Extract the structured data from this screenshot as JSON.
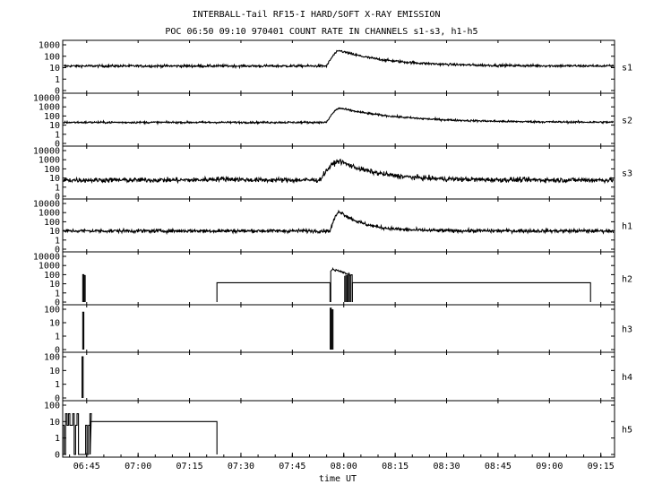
{
  "chart_data": {
    "type": "line",
    "title": "INTERBALL-Tail RF15-I HARD/SOFT X-RAY EMISSION",
    "subtitle": "POC 06:50 09:10 970401  COUNT RATE IN CHANNELS s1-s3, h1-h5",
    "xlabel": "time UT",
    "x_ticks": [
      "06:45",
      "07:00",
      "07:15",
      "07:30",
      "07:45",
      "08:00",
      "08:15",
      "08:30",
      "08:45",
      "09:00",
      "09:15"
    ],
    "x_range_minutes": [
      398.0,
      559.0
    ],
    "yscale": "log",
    "panels": [
      {
        "name": "s1",
        "y_ticks": [
          "1000",
          "100",
          "10",
          "1",
          "0"
        ],
        "baseline": 14,
        "noise": 0.1,
        "events": [
          {
            "kind": "flare",
            "start": "07:55",
            "peak": "07:59",
            "peak_value": 300,
            "decay_min": 14
          }
        ]
      },
      {
        "name": "s2",
        "y_ticks": [
          "10000",
          "1000",
          "100",
          "10",
          "1",
          "0"
        ],
        "baseline": 20,
        "noise": 0.1,
        "events": [
          {
            "kind": "flare",
            "start": "07:55",
            "peak": "07:59",
            "peak_value": 700,
            "decay_min": 18
          }
        ]
      },
      {
        "name": "s3",
        "y_ticks": [
          "10000",
          "1000",
          "100",
          "10",
          "1",
          "0"
        ],
        "baseline": 6,
        "noise": 0.25,
        "events": [
          {
            "kind": "flare",
            "start": "07:53",
            "peak": "07:59",
            "peak_value": 700,
            "decay_min": 11
          },
          {
            "kind": "bump",
            "center": "07:25",
            "value": 8
          },
          {
            "kind": "bump",
            "center": "08:20",
            "value": 10
          }
        ]
      },
      {
        "name": "h1",
        "y_ticks": [
          "10000",
          "1000",
          "100",
          "10",
          "1",
          "0"
        ],
        "baseline": 10,
        "noise": 0.18,
        "events": [
          {
            "kind": "flare",
            "start": "07:56",
            "peak": "07:59",
            "peak_value": 1300,
            "decay_min": 7
          }
        ]
      },
      {
        "name": "h2",
        "y_ticks": [
          "10000",
          "1000",
          "100",
          "10",
          "1",
          "0"
        ],
        "segments": [
          {
            "kind": "spike",
            "time": "06:44",
            "value": 100
          },
          {
            "kind": "spike",
            "time": "06:44.4",
            "value": 80
          },
          {
            "kind": "step",
            "from": "07:23",
            "to": "07:56",
            "value": 13
          },
          {
            "kind": "flare",
            "start": "07:56.2",
            "peak": "07:56.8",
            "peak_value": 400,
            "end": "08:02.5",
            "end_value": 80
          },
          {
            "kind": "step",
            "from": "08:02.5",
            "to": "09:12",
            "value": 13
          }
        ]
      },
      {
        "name": "h3",
        "y_ticks": [
          "100",
          "10",
          "1",
          "0"
        ],
        "segments": [
          {
            "kind": "spike",
            "time": "06:44",
            "value": 60
          },
          {
            "kind": "spike",
            "time": "07:56.2",
            "value": 120
          },
          {
            "kind": "spike",
            "time": "07:56.7",
            "value": 90
          }
        ]
      },
      {
        "name": "h4",
        "y_ticks": [
          "100",
          "10",
          "1",
          "0"
        ],
        "segments": [
          {
            "kind": "spike",
            "time": "06:43.8",
            "value": 100
          }
        ]
      },
      {
        "name": "h5",
        "y_ticks": [
          "100",
          "10",
          "1",
          "0"
        ],
        "segments": [
          {
            "kind": "burst",
            "from": "06:38",
            "to": "06:46",
            "value": 30
          },
          {
            "kind": "step",
            "from": "06:46",
            "to": "07:23",
            "value": 10
          }
        ]
      }
    ]
  }
}
